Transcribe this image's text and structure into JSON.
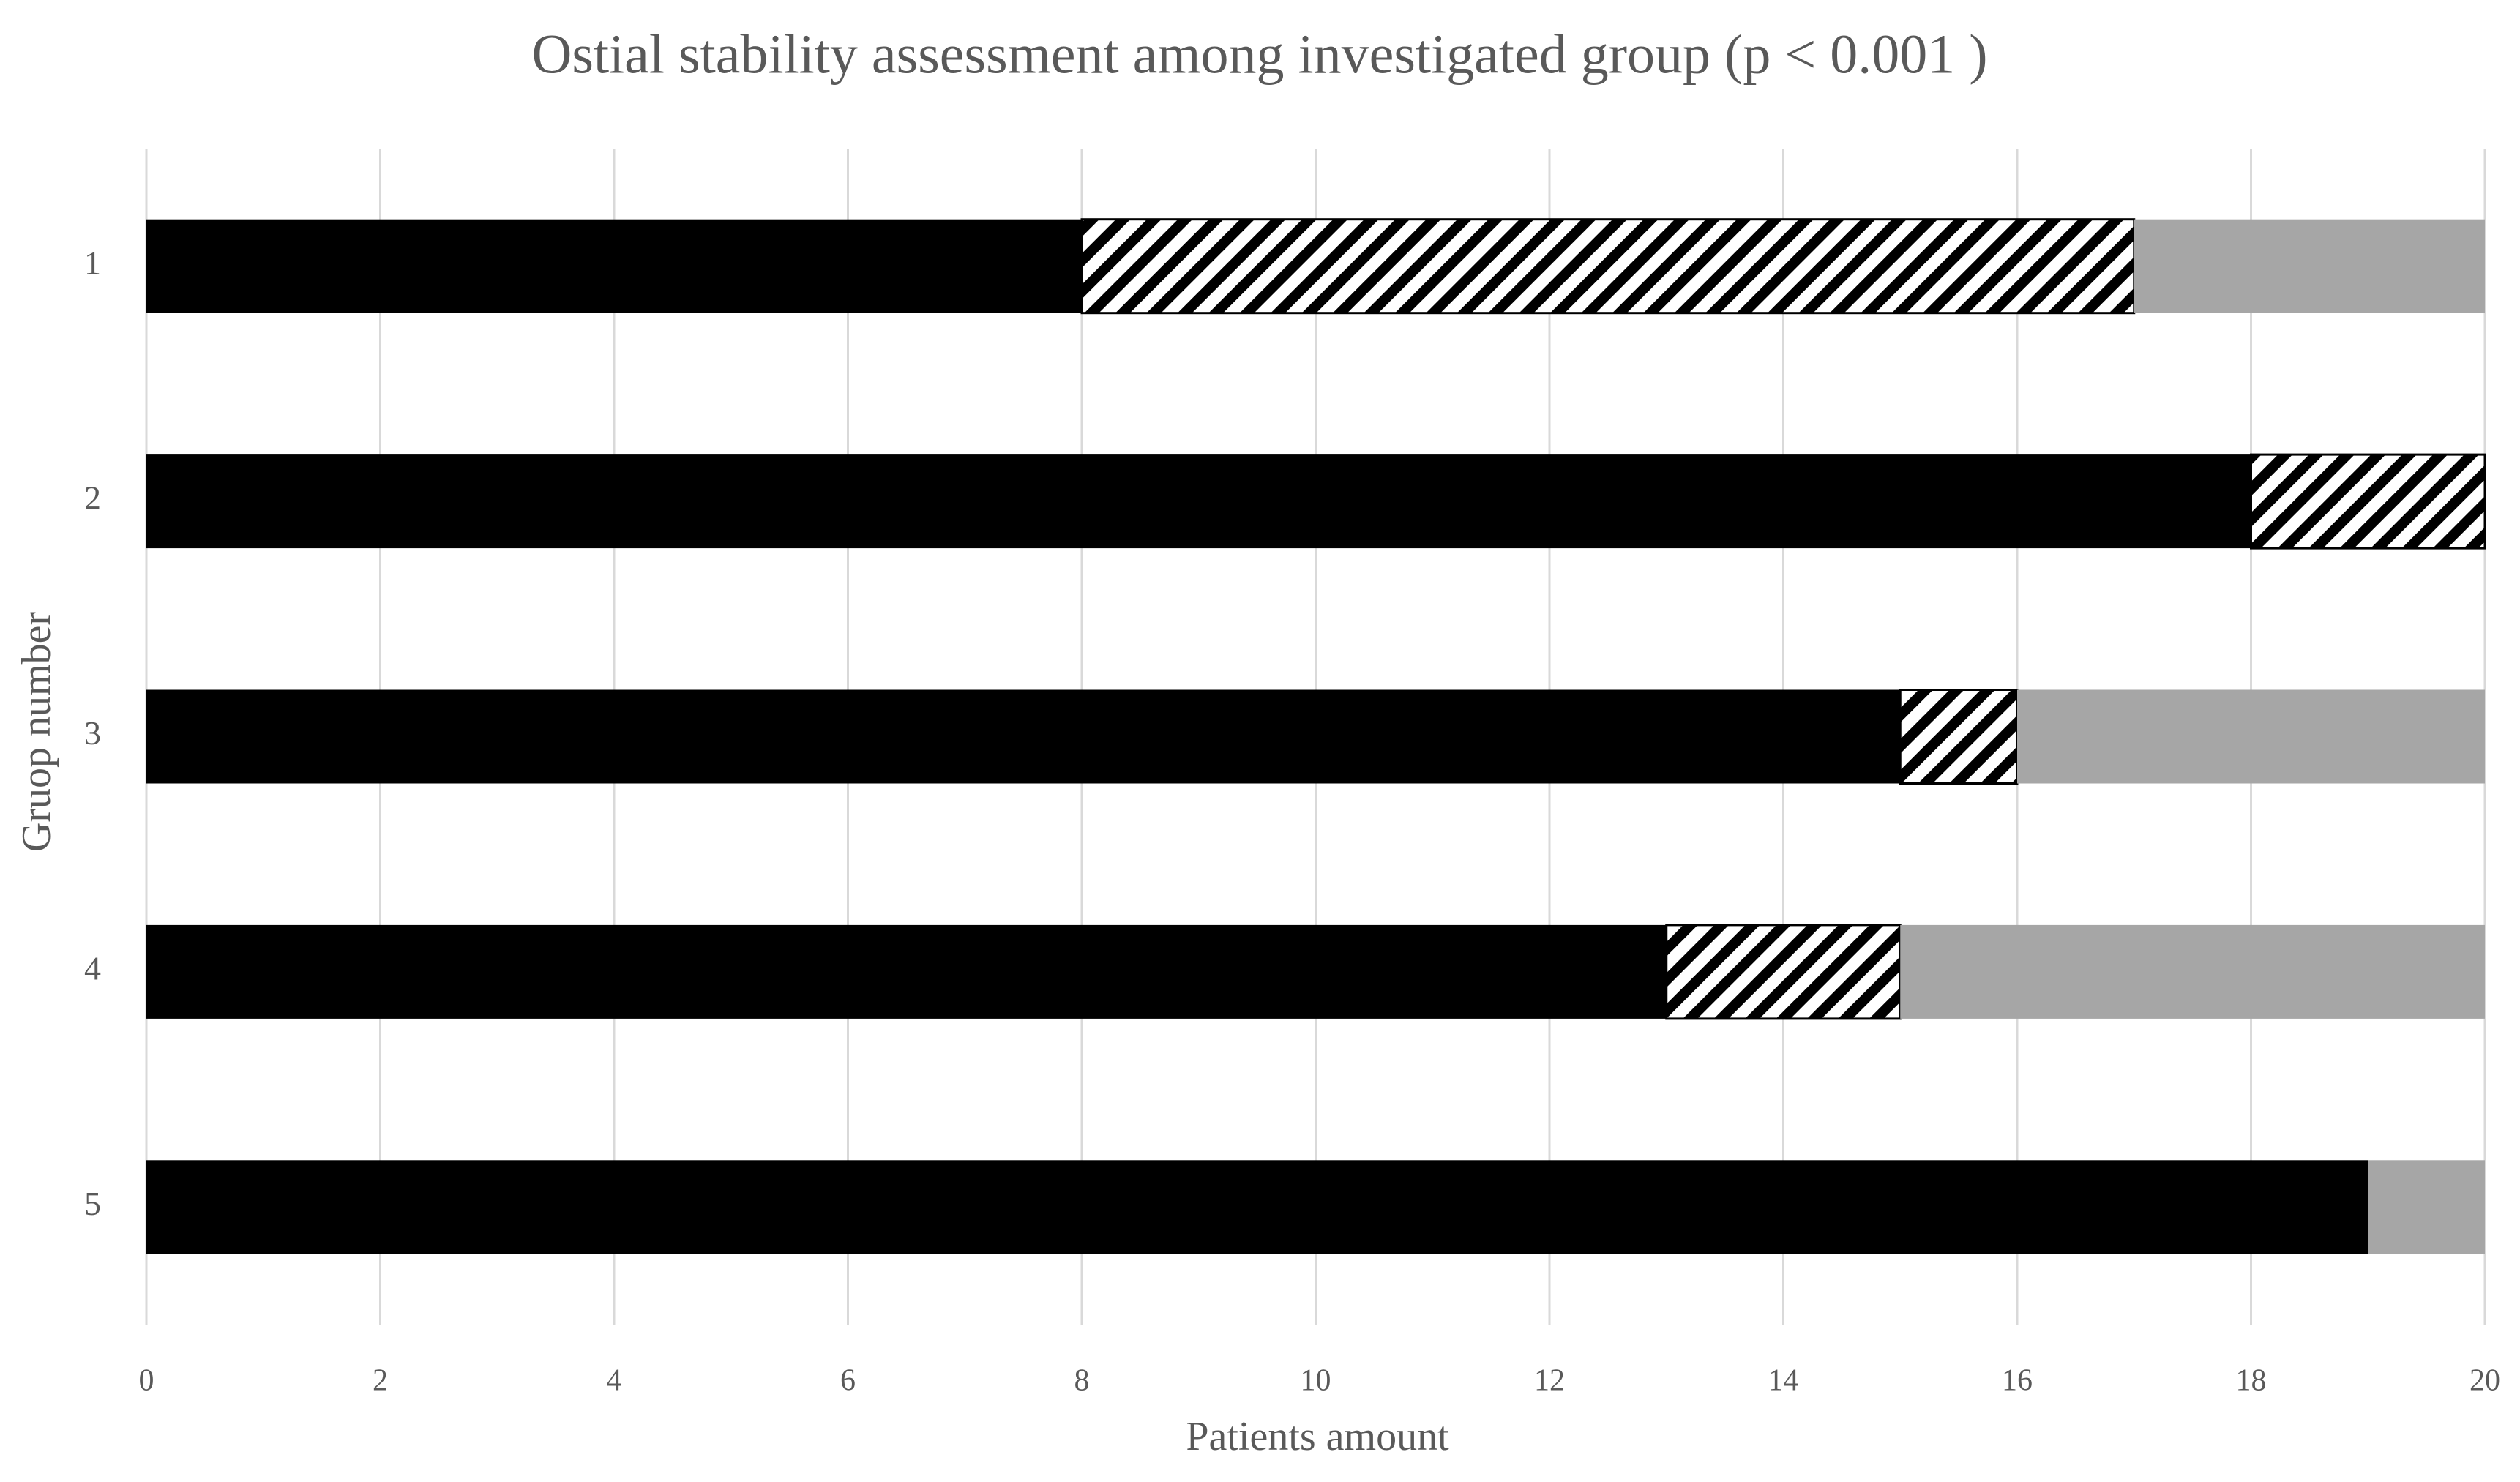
{
  "chart_data": {
    "type": "stacked-barh",
    "title": "Ostial stability assessment among investigated group (p < 0.001   )",
    "xlabel": "Patients amount",
    "ylabel": "Gruop number",
    "categories": [
      "1",
      "2",
      "3",
      "4",
      "5"
    ],
    "series": [
      {
        "color": "#000000",
        "values": [
          8,
          18,
          15,
          13,
          19
        ]
      },
      {
        "color": "#000000",
        "hatch": true,
        "values": [
          9,
          2,
          1,
          2,
          0
        ]
      },
      {
        "color": "#a6a6a6",
        "values": [
          3,
          0,
          4,
          5,
          1
        ]
      }
    ],
    "xlim": [
      0,
      20
    ],
    "xticks": [
      0,
      2,
      4,
      6,
      8,
      10,
      12,
      14,
      16,
      18,
      20
    ],
    "grid": true
  }
}
